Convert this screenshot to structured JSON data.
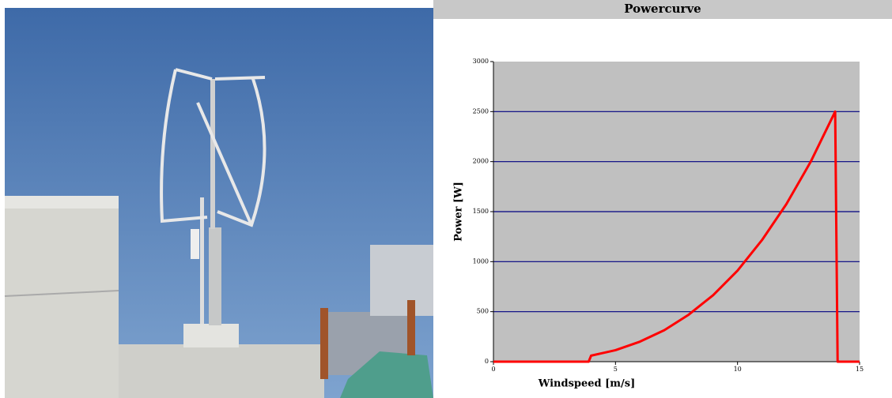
{
  "chart_data": {
    "type": "line",
    "title": "Powercurve",
    "xlabel": "Windspeed [m/s]",
    "ylabel": "Power [W]",
    "x": [
      0,
      3.9,
      4,
      5,
      6,
      7,
      8,
      9,
      10,
      11,
      12,
      13,
      14,
      14.1,
      15
    ],
    "series": [
      {
        "color": "#ff0000",
        "values": [
          0,
          0,
          60,
          115,
          200,
          315,
          470,
          665,
          910,
          1215,
          1575,
          2000,
          2500,
          0,
          0
        ]
      }
    ],
    "xlim": [
      0,
      15
    ],
    "xticks": [
      0,
      5,
      10,
      15
    ],
    "ylim": [
      0,
      3000
    ],
    "yticks": [
      0,
      500,
      1000,
      1500,
      2000,
      2500,
      3000
    ],
    "grid": true,
    "grid_color": "#000080",
    "plot_background": "#c0c0c0"
  }
}
